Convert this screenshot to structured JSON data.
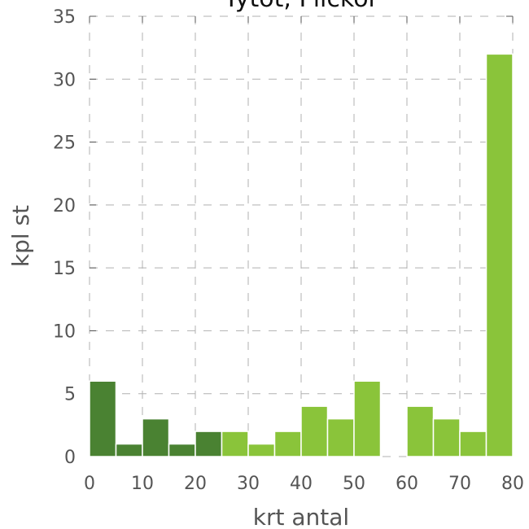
{
  "chart_data": {
    "type": "bar",
    "title": "Tytöt, Flickor",
    "xlabel": "krt antal",
    "ylabel": "kpl st",
    "xlim": [
      0,
      80
    ],
    "ylim": [
      0,
      35
    ],
    "xticks": [
      "0",
      "10",
      "20",
      "30",
      "40",
      "50",
      "60",
      "70",
      "80"
    ],
    "yticks": [
      "0",
      "5",
      "10",
      "15",
      "20",
      "25",
      "30",
      "35"
    ],
    "grid": true,
    "bin_width": 5,
    "colors": {
      "low": "#4a8232",
      "high": "#8ac43a"
    },
    "bins": [
      {
        "start": 0,
        "value": 6,
        "group": "low"
      },
      {
        "start": 5,
        "value": 1,
        "group": "low"
      },
      {
        "start": 10,
        "value": 3,
        "group": "low"
      },
      {
        "start": 15,
        "value": 1,
        "group": "low"
      },
      {
        "start": 20,
        "value": 2,
        "group": "low"
      },
      {
        "start": 25,
        "value": 2,
        "group": "high"
      },
      {
        "start": 30,
        "value": 1,
        "group": "high"
      },
      {
        "start": 35,
        "value": 2,
        "group": "high"
      },
      {
        "start": 40,
        "value": 4,
        "group": "high"
      },
      {
        "start": 45,
        "value": 3,
        "group": "high"
      },
      {
        "start": 50,
        "value": 6,
        "group": "high"
      },
      {
        "start": 55,
        "value": 0,
        "group": "high"
      },
      {
        "start": 60,
        "value": 4,
        "group": "high"
      },
      {
        "start": 65,
        "value": 3,
        "group": "high"
      },
      {
        "start": 70,
        "value": 2,
        "group": "high"
      },
      {
        "start": 75,
        "value": 32,
        "group": "high"
      }
    ]
  }
}
